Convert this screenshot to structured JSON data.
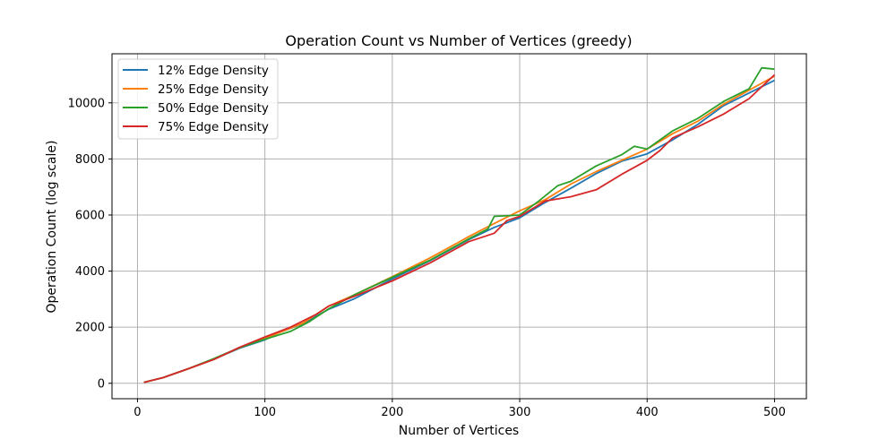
{
  "chart_data": {
    "type": "line",
    "title": "Operation Count vs Number of Vertices (greedy)",
    "xlabel": "Number of Vertices",
    "ylabel": "Operation Count (log scale)",
    "xlim": [
      -20,
      525
    ],
    "ylim": [
      -550,
      11750
    ],
    "xticks": [
      0,
      100,
      200,
      300,
      400,
      500
    ],
    "yticks": [
      0,
      2000,
      4000,
      6000,
      8000,
      10000
    ],
    "grid": true,
    "legend_position": "top-left",
    "series": [
      {
        "name": "12% Edge Density",
        "color": "#1f77b4",
        "points": [
          [
            5,
            30
          ],
          [
            20,
            200
          ],
          [
            40,
            520
          ],
          [
            60,
            860
          ],
          [
            80,
            1250
          ],
          [
            100,
            1550
          ],
          [
            110,
            1790
          ],
          [
            130,
            2130
          ],
          [
            150,
            2640
          ],
          [
            170,
            3010
          ],
          [
            200,
            3720
          ],
          [
            230,
            4380
          ],
          [
            260,
            5120
          ],
          [
            280,
            5560
          ],
          [
            300,
            5900
          ],
          [
            320,
            6450
          ],
          [
            340,
            6950
          ],
          [
            360,
            7480
          ],
          [
            380,
            7920
          ],
          [
            400,
            8180
          ],
          [
            420,
            8680
          ],
          [
            440,
            9240
          ],
          [
            460,
            9900
          ],
          [
            480,
            10350
          ],
          [
            500,
            10800
          ]
        ]
      },
      {
        "name": "25% Edge Density",
        "color": "#ff7f0e",
        "points": [
          [
            5,
            30
          ],
          [
            20,
            200
          ],
          [
            40,
            520
          ],
          [
            60,
            860
          ],
          [
            80,
            1270
          ],
          [
            100,
            1600
          ],
          [
            130,
            2150
          ],
          [
            150,
            2750
          ],
          [
            170,
            3150
          ],
          [
            200,
            3800
          ],
          [
            230,
            4480
          ],
          [
            260,
            5230
          ],
          [
            280,
            5700
          ],
          [
            300,
            6150
          ],
          [
            320,
            6550
          ],
          [
            340,
            7100
          ],
          [
            360,
            7550
          ],
          [
            380,
            7950
          ],
          [
            400,
            8350
          ],
          [
            420,
            8900
          ],
          [
            440,
            9350
          ],
          [
            460,
            9950
          ],
          [
            480,
            10450
          ],
          [
            500,
            10950
          ]
        ]
      },
      {
        "name": "50% Edge Density",
        "color": "#2ca02c",
        "points": [
          [
            5,
            30
          ],
          [
            20,
            200
          ],
          [
            40,
            520
          ],
          [
            60,
            880
          ],
          [
            80,
            1270
          ],
          [
            100,
            1570
          ],
          [
            120,
            1850
          ],
          [
            135,
            2200
          ],
          [
            150,
            2650
          ],
          [
            170,
            3150
          ],
          [
            200,
            3780
          ],
          [
            230,
            4400
          ],
          [
            260,
            5150
          ],
          [
            275,
            5500
          ],
          [
            280,
            5950
          ],
          [
            300,
            6000
          ],
          [
            315,
            6500
          ],
          [
            330,
            7050
          ],
          [
            340,
            7200
          ],
          [
            360,
            7750
          ],
          [
            380,
            8150
          ],
          [
            390,
            8450
          ],
          [
            400,
            8350
          ],
          [
            420,
            9000
          ],
          [
            440,
            9450
          ],
          [
            460,
            10050
          ],
          [
            480,
            10500
          ],
          [
            490,
            11250
          ],
          [
            500,
            11200
          ]
        ]
      },
      {
        "name": "75% Edge Density",
        "color": "#d62728",
        "points": [
          [
            5,
            30
          ],
          [
            20,
            200
          ],
          [
            40,
            520
          ],
          [
            60,
            850
          ],
          [
            80,
            1280
          ],
          [
            100,
            1650
          ],
          [
            120,
            2000
          ],
          [
            140,
            2450
          ],
          [
            150,
            2750
          ],
          [
            170,
            3100
          ],
          [
            200,
            3650
          ],
          [
            230,
            4300
          ],
          [
            260,
            5050
          ],
          [
            280,
            5350
          ],
          [
            290,
            5800
          ],
          [
            300,
            5950
          ],
          [
            320,
            6500
          ],
          [
            340,
            6650
          ],
          [
            360,
            6900
          ],
          [
            380,
            7450
          ],
          [
            400,
            7950
          ],
          [
            410,
            8300
          ],
          [
            420,
            8750
          ],
          [
            440,
            9150
          ],
          [
            460,
            9600
          ],
          [
            480,
            10150
          ],
          [
            500,
            11000
          ]
        ]
      }
    ]
  }
}
